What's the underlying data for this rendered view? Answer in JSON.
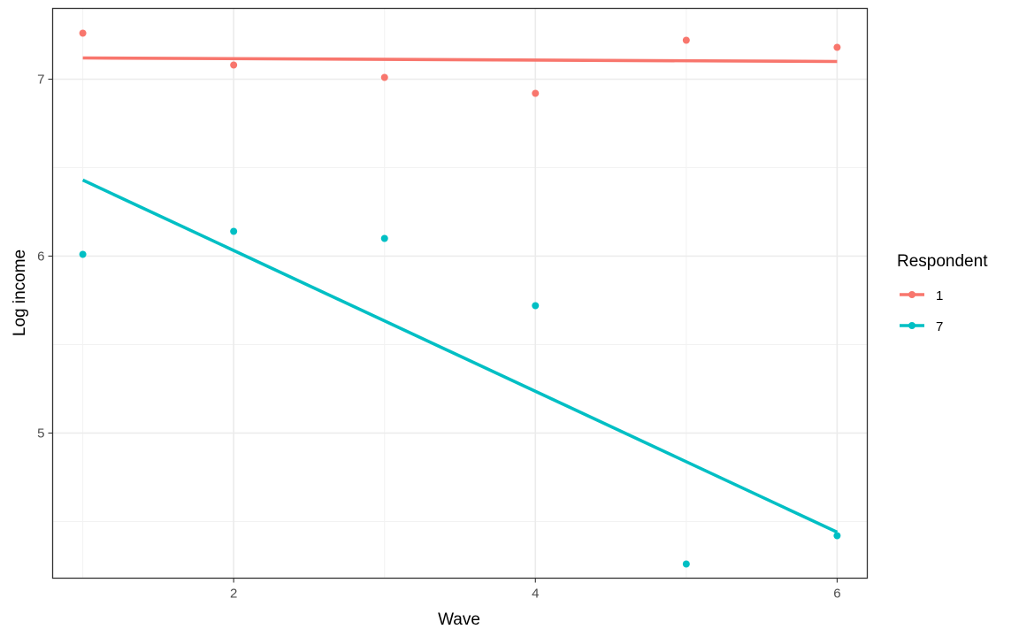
{
  "chart_data": {
    "type": "scatter",
    "title": "",
    "xlabel": "Wave",
    "ylabel": "Log income",
    "xlim": [
      0.8,
      6.2
    ],
    "ylim": [
      4.18,
      7.4
    ],
    "x_ticks": [
      2,
      4,
      6
    ],
    "x_tick_labels": [
      "2",
      "4",
      "6"
    ],
    "x_minor_ticks": [
      1,
      3,
      5
    ],
    "y_ticks": [
      5,
      6,
      7
    ],
    "y_tick_labels": [
      "5",
      "6",
      "7"
    ],
    "y_minor_ticks": [
      4.5,
      5.5,
      6.5
    ],
    "grid": true,
    "legend": {
      "title": "Respondent",
      "placement": "right"
    },
    "series": [
      {
        "name": "1",
        "color": "#F8766D",
        "x": [
          1,
          2,
          3,
          4,
          5,
          6
        ],
        "y": [
          7.26,
          7.08,
          7.01,
          6.92,
          7.22,
          7.18
        ],
        "fit": {
          "x": [
            1,
            6
          ],
          "y": [
            7.12,
            7.1
          ]
        }
      },
      {
        "name": "7",
        "color": "#00BFC4",
        "x": [
          1,
          2,
          3,
          4,
          5,
          6
        ],
        "y": [
          6.01,
          6.14,
          6.1,
          5.72,
          4.26,
          4.42
        ],
        "fit": {
          "x": [
            1,
            6
          ],
          "y": [
            6.43,
            4.44
          ]
        }
      }
    ]
  }
}
